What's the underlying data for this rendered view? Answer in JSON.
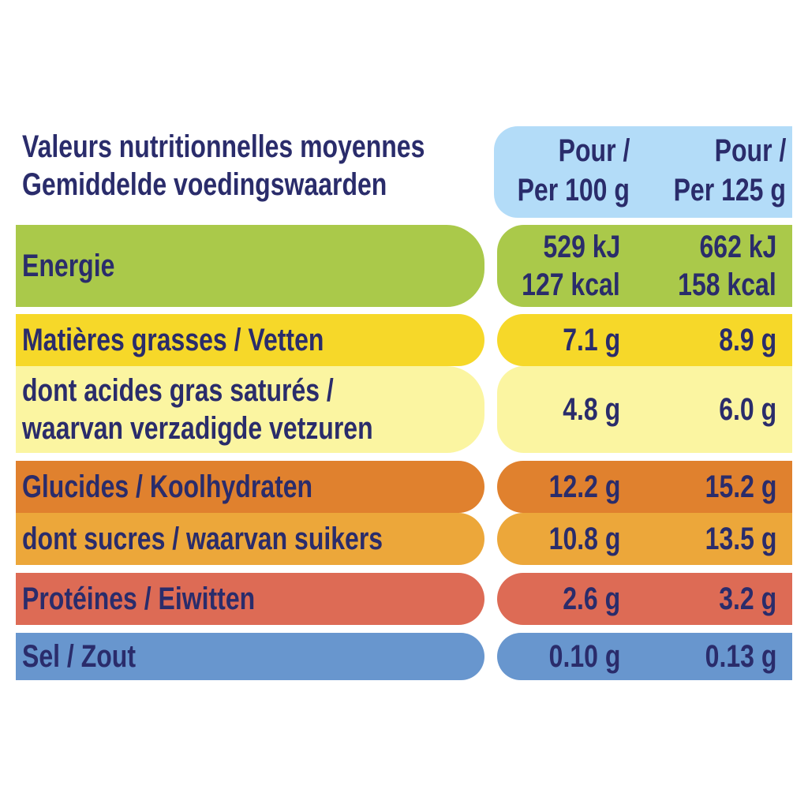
{
  "header": {
    "title_line1": "Valeurs nutritionnelles moyennes",
    "title_line2": "Gemiddelde voedingswaarden",
    "col1_line1": "Pour /",
    "col1_line2": "Per 100 g",
    "col2_line1": "Pour /",
    "col2_line2": "Per 125 g",
    "header_bg": "#b3dcf8"
  },
  "rows": [
    {
      "label": [
        "Energie"
      ],
      "v1": [
        "529 kJ",
        "127 kcal"
      ],
      "v2": [
        "662 kJ",
        "158 kcal"
      ],
      "color": "#aac94a"
    },
    {
      "label": [
        "Matières grasses / Vetten"
      ],
      "v1": [
        "7.1 g"
      ],
      "v2": [
        "8.9 g"
      ],
      "color": "#f6d829"
    },
    {
      "label": [
        "dont acides gras saturés /",
        "waarvan verzadigde vetzuren"
      ],
      "v1": [
        "4.8 g"
      ],
      "v2": [
        "6.0 g"
      ],
      "color": "#fbf5a1"
    },
    {
      "label": [
        "Glucides / Koolhydraten"
      ],
      "v1": [
        "12.2 g"
      ],
      "v2": [
        "15.2 g"
      ],
      "color": "#e0812e"
    },
    {
      "label": [
        "dont sucres / waarvan suikers"
      ],
      "v1": [
        "10.8 g"
      ],
      "v2": [
        "13.5 g"
      ],
      "color": "#eca73a"
    },
    {
      "label": [
        "Protéines / Eiwitten"
      ],
      "v1": [
        "2.6 g"
      ],
      "v2": [
        "3.2 g"
      ],
      "color": "#dd6b55"
    },
    {
      "label": [
        "Sel / Zout"
      ],
      "v1": [
        "0.10 g"
      ],
      "v2": [
        "0.13 g"
      ],
      "color": "#6896ce"
    }
  ]
}
